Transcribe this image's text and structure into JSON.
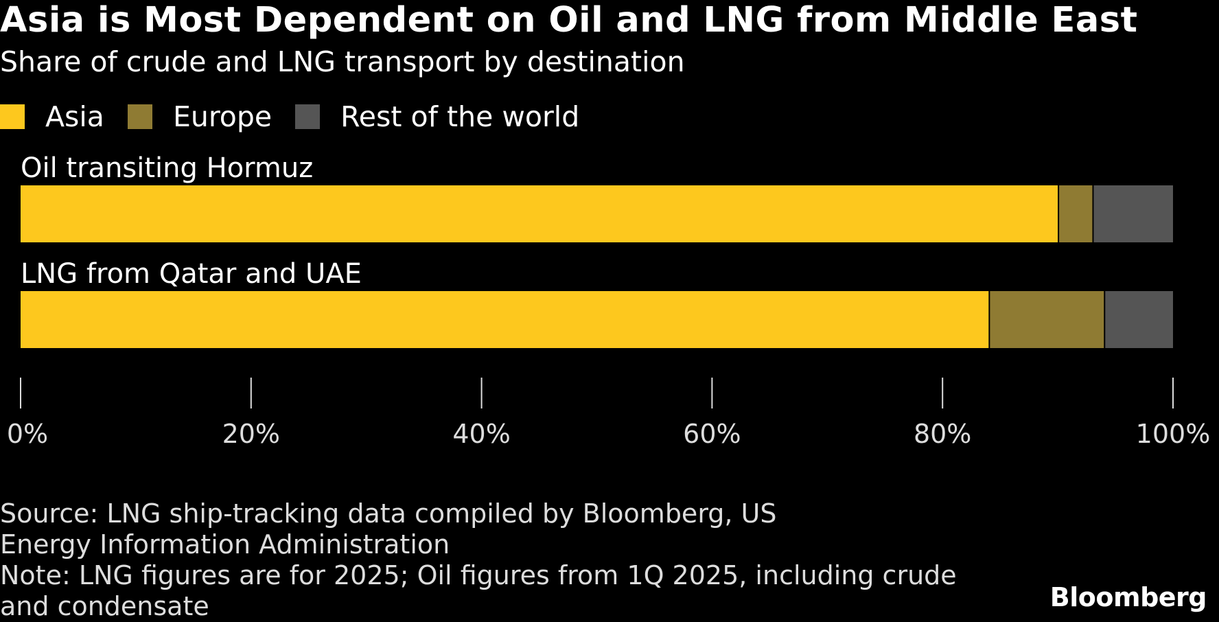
{
  "title": "Asia is Most Dependent on Oil and LNG from Middle East",
  "subtitle": "Share of crude and LNG transport by destination",
  "footer": {
    "source": "Source: LNG ship-tracking data compiled by Bloomberg, US Energy Information Administration",
    "note": "Note: LNG figures are for 2025; Oil figures from 1Q 2025, including crude and condensate"
  },
  "logo": "Bloomberg",
  "chart_data": {
    "type": "bar",
    "orientation": "horizontal",
    "stacked": true,
    "categories": [
      "Oil transiting Hormuz",
      "LNG from Qatar and UAE"
    ],
    "series": [
      {
        "name": "Asia",
        "color": "#fdc81e",
        "values": [
          90,
          84
        ]
      },
      {
        "name": "Europe",
        "color": "#8f7b33",
        "values": [
          3,
          10
        ]
      },
      {
        "name": "Rest of the world",
        "color": "#555555",
        "values": [
          7,
          6
        ]
      }
    ],
    "xlim": [
      0,
      100
    ],
    "xticks": [
      "0%",
      "20%",
      "40%",
      "60%",
      "80%",
      "100%"
    ],
    "grid": false,
    "legend": "top-left"
  }
}
